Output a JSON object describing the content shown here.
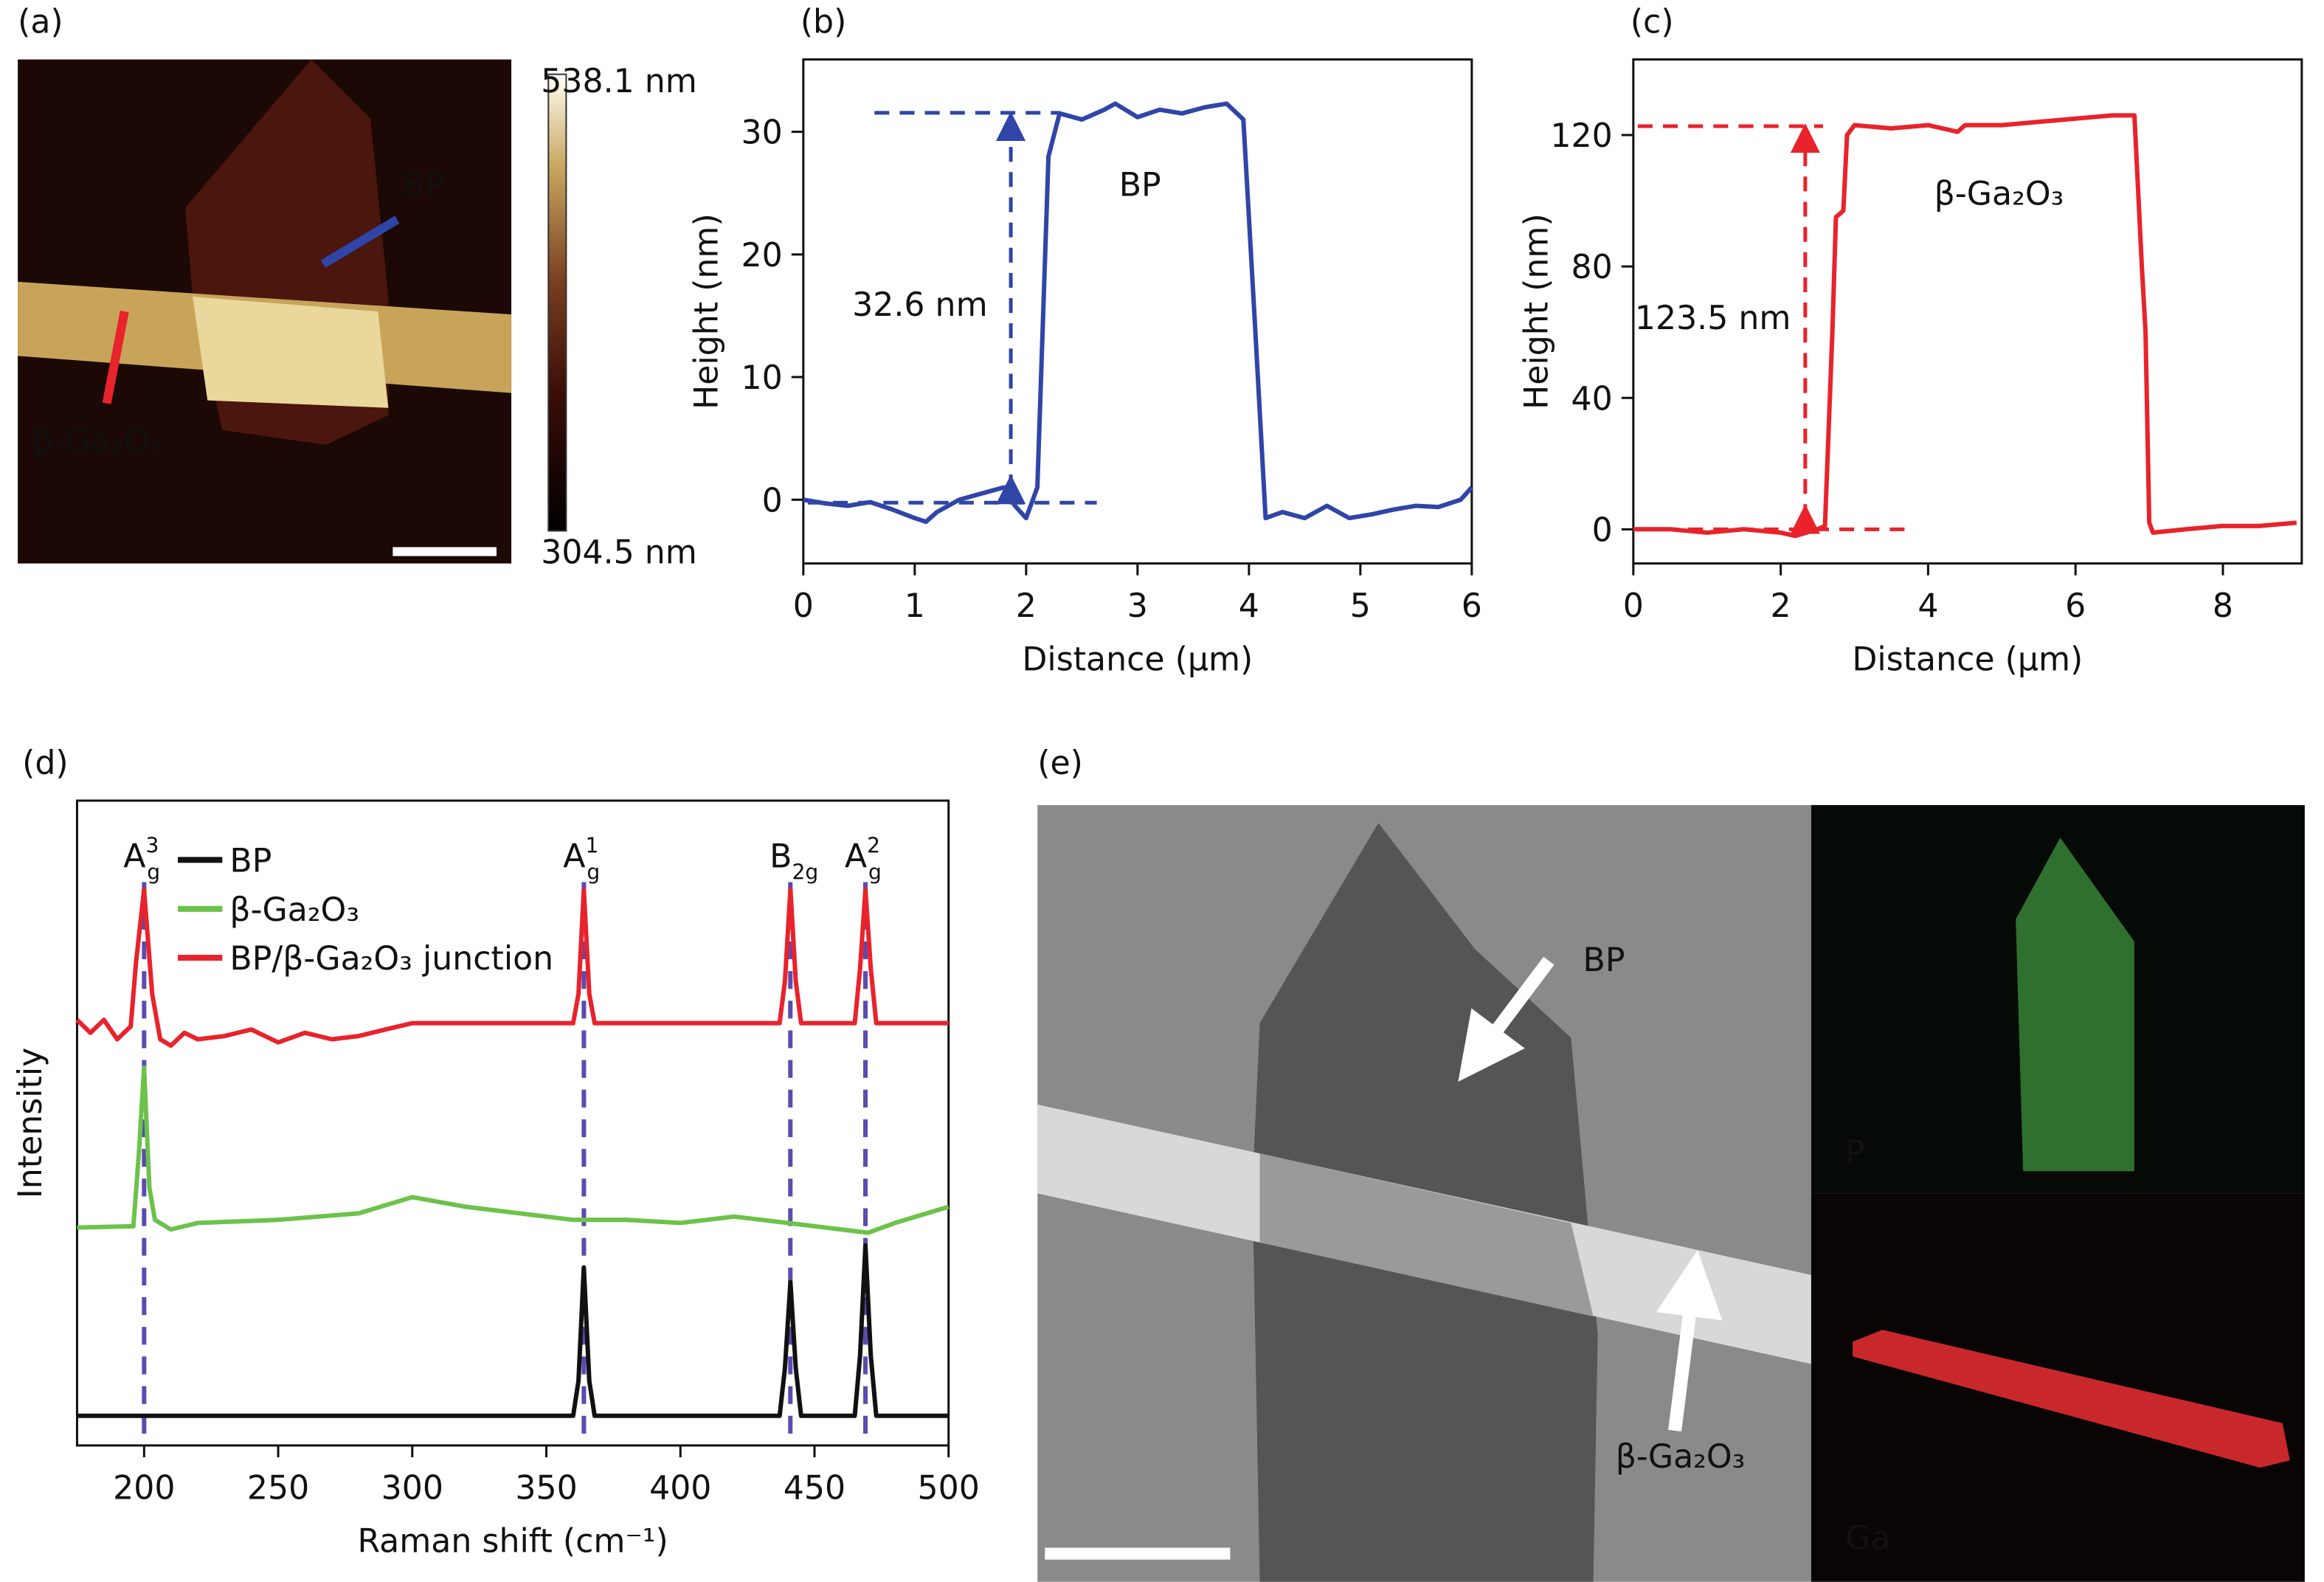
{
  "chart_data": [
    {
      "type": "line",
      "label": "(b)",
      "x_label": "Distance (μm)",
      "y_label": "Height (nm)",
      "xlim": [
        0,
        6
      ],
      "ylim": [
        -5.2,
        35.9
      ],
      "xticks": [
        0,
        1,
        2,
        3,
        4,
        5,
        6
      ],
      "yticks": [
        0,
        10,
        20,
        30
      ],
      "annotations": [
        "BP",
        "32.6 nm"
      ],
      "series": [
        {
          "name": "BP",
          "color": "#2f45a8",
          "x": [
            0,
            0.2,
            0.4,
            0.6,
            0.8,
            1.0,
            1.1,
            1.2,
            1.4,
            1.6,
            1.8,
            1.9,
            2.0,
            2.1,
            2.2,
            2.3,
            2.5,
            2.7,
            2.8,
            3.0,
            3.2,
            3.4,
            3.6,
            3.8,
            3.95,
            4.05,
            4.15,
            4.3,
            4.5,
            4.7,
            4.9,
            5.1,
            5.3,
            5.5,
            5.7,
            5.9,
            6.0
          ],
          "values": [
            0,
            -0.3,
            -0.5,
            -0.2,
            -0.8,
            -1.5,
            -1.8,
            -1,
            0,
            0.5,
            1.0,
            -0.5,
            -1.5,
            1,
            28,
            31.5,
            31,
            31.8,
            32.3,
            31.2,
            31.8,
            31.5,
            32,
            32.3,
            31,
            15,
            -1.5,
            -1,
            -1.5,
            -0.5,
            -1.5,
            -1.2,
            -0.8,
            -0.5,
            -0.6,
            0,
            1
          ]
        }
      ]
    },
    {
      "type": "line",
      "label": "(c)",
      "x_label": "Distance (μm)",
      "y_label": "Height (nm)",
      "xlim": [
        0,
        9.07
      ],
      "ylim": [
        -10.4,
        143
      ],
      "xticks": [
        0,
        2,
        4,
        6,
        8
      ],
      "yticks": [
        0,
        40,
        80,
        120
      ],
      "annotations": [
        "β-Ga₂O₃",
        "123.5 nm"
      ],
      "series": [
        {
          "name": "β-Ga₂O₃",
          "color": "#e8232b",
          "x": [
            0,
            0.5,
            1,
            1.5,
            2,
            2.2,
            2.5,
            2.6,
            2.7,
            2.75,
            2.85,
            2.9,
            3,
            3.5,
            4,
            4.4,
            4.5,
            5,
            5.5,
            6,
            6.5,
            6.8,
            6.9,
            6.95,
            7.0,
            7.05,
            7.5,
            8,
            8.5,
            9
          ],
          "values": [
            0,
            0,
            -1,
            0,
            -1,
            -2,
            0,
            1,
            60,
            95,
            97,
            120,
            123,
            122,
            123,
            121,
            123,
            123,
            124,
            125,
            126,
            126,
            80,
            60,
            2,
            -1,
            0,
            1,
            1,
            2
          ]
        }
      ]
    },
    {
      "type": "line",
      "label": "(d)",
      "x_label": "Raman shift (cm⁻¹)",
      "y_label": "Intensitiy",
      "xlim": [
        175,
        500
      ],
      "ylim": [
        0,
        100
      ],
      "xticks": [
        200,
        250,
        300,
        350,
        400,
        450,
        500
      ],
      "peak_lines": [
        200,
        364,
        441,
        469
      ],
      "peak_labels": [
        {
          "base": "A",
          "sub": "g",
          "sup": "3"
        },
        {
          "base": "A",
          "sub": "g",
          "sup": "1"
        },
        {
          "base": "B",
          "sub": "2g"
        },
        {
          "base": "A",
          "sub": "g",
          "sup": "2"
        }
      ],
      "series": [
        {
          "name": "BP",
          "color": "#111111",
          "x": [
            175,
            360,
            362,
            364,
            366,
            368,
            437,
            439,
            441,
            443,
            445,
            465,
            467,
            469,
            471,
            473,
            500
          ],
          "values": [
            4.6,
            4.6,
            10,
            27.6,
            10,
            4.6,
            4.6,
            12,
            25.3,
            12,
            4.6,
            4.6,
            14,
            31,
            14,
            4.6,
            4.6
          ]
        },
        {
          "name": "β-Ga₂O₃",
          "color": "#6cc24a",
          "x": [
            175,
            196,
            198,
            200,
            202,
            204,
            210,
            220,
            250,
            280,
            300,
            320,
            340,
            360,
            380,
            400,
            420,
            440,
            460,
            470,
            480,
            500
          ],
          "values": [
            33.8,
            34,
            45,
            58.6,
            40,
            35,
            33.5,
            34.5,
            35,
            36,
            38.5,
            37,
            36,
            35,
            35,
            34.5,
            35.5,
            34.5,
            33.5,
            33,
            34.5,
            37
          ]
        },
        {
          "name": "BP/β-Ga₂O₃ junction",
          "color": "#e8232b",
          "x": [
            175,
            180,
            185,
            190,
            195,
            197,
            200,
            203,
            206,
            210,
            215,
            220,
            230,
            240,
            250,
            260,
            270,
            280,
            290,
            300,
            320,
            360,
            362,
            364,
            366,
            368,
            437,
            439,
            441,
            443,
            445,
            465,
            467,
            469,
            471,
            473,
            500
          ],
          "values": [
            66,
            64,
            66,
            63,
            65,
            75,
            86.2,
            70,
            63,
            62,
            64,
            63,
            63.5,
            64.5,
            62.5,
            64,
            63,
            63.5,
            64.5,
            65.5,
            65.5,
            65.5,
            70,
            86.2,
            70,
            65.5,
            65.5,
            72,
            86.2,
            72,
            65.5,
            65.5,
            74,
            86.2,
            74,
            65.5,
            65.5
          ]
        }
      ]
    }
  ],
  "panels": {
    "a": {
      "label": "(a)",
      "annotations": [
        "BP",
        "β-Ga₂O₃"
      ],
      "colorbar_max": "538.1 nm",
      "colorbar_min": "304.5 nm"
    },
    "e": {
      "label": "(e)",
      "annotations": [
        "BP",
        "β-Ga₂O₃"
      ],
      "maps": [
        "P",
        "Ga"
      ]
    }
  }
}
